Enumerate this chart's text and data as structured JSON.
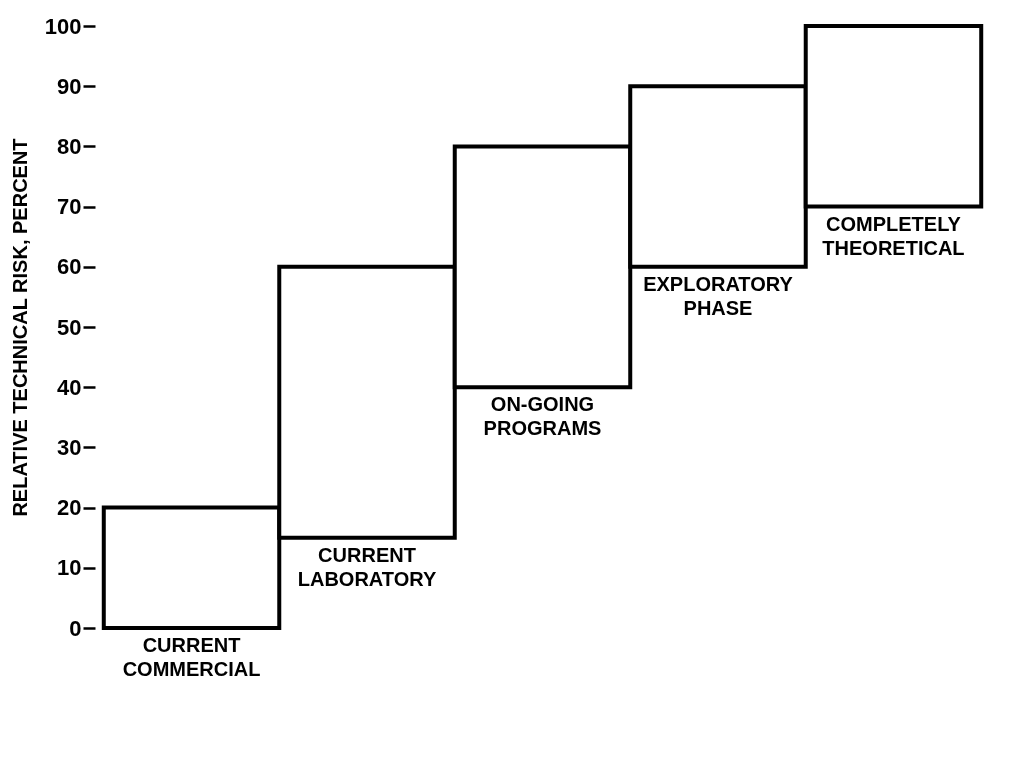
{
  "chart_data": {
    "type": "bar",
    "ylabel": "RELATIVE TECHNICAL RISK, PERCENT",
    "categories": [
      "CURRENT COMMERCIAL",
      "CURRENT LABORATORY",
      "ON-GOING PROGRAMS",
      "EXPLORATORY PHASE",
      "COMPLETELY THEORETICAL"
    ],
    "base": [
      0,
      15,
      40,
      60,
      70
    ],
    "values": [
      20,
      45,
      40,
      30,
      30
    ],
    "color": "#ffffff",
    "ylim": [
      0,
      100
    ],
    "yticks": [
      0,
      10,
      20,
      30,
      40,
      50,
      60,
      70,
      80,
      90,
      100
    ],
    "grid": false
  }
}
